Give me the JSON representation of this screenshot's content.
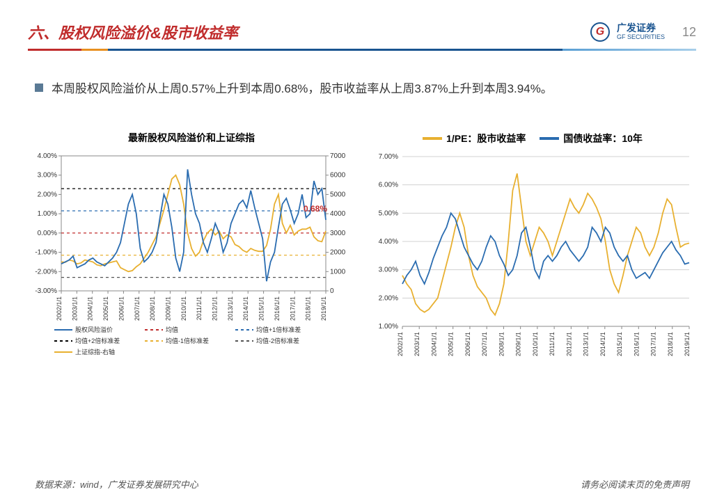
{
  "header": {
    "title": "六、股权风险溢价&股市收益率",
    "logo_cn": "广发证券",
    "logo_en": "GF SECURITIES",
    "page_number": "12"
  },
  "body_text": "本周股权风险溢价从上周0.57%上升到本周0.68%，股市收益率从上周3.87%上升到本周3.94%。",
  "chart1": {
    "title": "最新股权风险溢价和上证综指",
    "annotation": "0.68%",
    "annotation_color": "#c02c2c",
    "ylim_left": [
      -3,
      4
    ],
    "ylim_right": [
      0,
      7000
    ],
    "yticks_left": [
      "-3.00%",
      "-2.00%",
      "-1.00%",
      "0.00%",
      "1.00%",
      "2.00%",
      "3.00%",
      "4.00%"
    ],
    "yticks_right": [
      "0",
      "1000",
      "2000",
      "3000",
      "4000",
      "5000",
      "6000",
      "7000"
    ],
    "xticks": [
      "2002/1/1",
      "2003/1/1",
      "2004/1/1",
      "2005/1/1",
      "2006/1/1",
      "2007/1/1",
      "2008/1/1",
      "2009/1/1",
      "2010/1/1",
      "2011/1/1",
      "2012/1/1",
      "2013/1/1",
      "2014/1/1",
      "2015/1/1",
      "2016/1/1",
      "2017/1/1",
      "2018/1/1",
      "2019/1/1"
    ],
    "series_erp": {
      "color": "#2a6cb0",
      "width": 1.8,
      "points": [
        -1.6,
        -1.5,
        -1.4,
        -1.2,
        -1.8,
        -1.7,
        -1.6,
        -1.4,
        -1.3,
        -1.5,
        -1.6,
        -1.7,
        -1.5,
        -1.3,
        -1.0,
        -0.5,
        0.5,
        1.5,
        2.0,
        1.0,
        -0.8,
        -1.5,
        -1.3,
        -1.0,
        -0.5,
        0.8,
        2.0,
        1.5,
        0.3,
        -1.3,
        -2.0,
        -1.0,
        3.3,
        2.0,
        1.0,
        0.5,
        -0.5,
        -1.0,
        -0.3,
        0.5,
        0.0,
        -1.0,
        -0.5,
        0.5,
        1.0,
        1.5,
        1.7,
        1.3,
        2.2,
        1.3,
        0.5,
        -0.3,
        -2.5,
        -1.5,
        -1.0,
        0.3,
        1.5,
        1.8,
        1.2,
        0.5,
        1.0,
        2.0,
        0.8,
        1.0,
        2.7,
        2.0,
        2.3,
        0.68
      ]
    },
    "series_index": {
      "color": "#e8b030",
      "width": 1.8,
      "points": [
        1500,
        1480,
        1600,
        1550,
        1400,
        1450,
        1600,
        1550,
        1500,
        1350,
        1300,
        1400,
        1450,
        1500,
        1550,
        1200,
        1100,
        1000,
        1050,
        1250,
        1400,
        1700,
        2000,
        2400,
        2800,
        3500,
        4200,
        5000,
        5800,
        6000,
        5500,
        4500,
        3000,
        2200,
        1800,
        2000,
        2600,
        3000,
        3200,
        2900,
        3100,
        2700,
        2900,
        2800,
        2400,
        2300,
        2100,
        2000,
        2200,
        2100,
        2050,
        2050,
        2350,
        3200,
        4500,
        5000,
        3500,
        3000,
        3400,
        2900,
        3100,
        3200,
        3200,
        3300,
        2800,
        2600,
        2550,
        3100
      ]
    },
    "hlines": [
      {
        "y": 0,
        "color": "#c02c2c",
        "dash": "4,4"
      },
      {
        "y": 1.15,
        "color": "#2a6cb0",
        "dash": "4,4"
      },
      {
        "y": 2.3,
        "color": "#000000",
        "dash": "4,4"
      },
      {
        "y": -1.15,
        "color": "#e8b030",
        "dash": "4,4"
      },
      {
        "y": -2.3,
        "color": "#555555",
        "dash": "4,4"
      }
    ],
    "legend": [
      {
        "label": "股权风险溢价",
        "color": "#2a6cb0",
        "dash": "0"
      },
      {
        "label": "均值",
        "color": "#c02c2c",
        "dash": "4,4"
      },
      {
        "label": "均值+1倍标准差",
        "color": "#2a6cb0",
        "dash": "4,4"
      },
      {
        "label": "均值+2倍标准差",
        "color": "#000000",
        "dash": "4,4"
      },
      {
        "label": "均值-1倍标准差",
        "color": "#e8b030",
        "dash": "4,4"
      },
      {
        "label": "均值-2倍标准差",
        "color": "#555555",
        "dash": "4,4"
      },
      {
        "label": "上证综指-右轴",
        "color": "#e8b030",
        "dash": "0"
      }
    ],
    "background_color": "#ffffff",
    "grid_color": "#d0d0d0",
    "label_fontsize": 10
  },
  "chart2": {
    "title_seg1": "1/PE：股市收益率",
    "title_seg2": "国债收益率：10年",
    "seg1_color": "#e8b030",
    "seg2_color": "#2a6cb0",
    "ylim": [
      1,
      7
    ],
    "yticks": [
      "1.00%",
      "2.00%",
      "3.00%",
      "4.00%",
      "5.00%",
      "6.00%",
      "7.00%"
    ],
    "xticks": [
      "2002/1/1",
      "2003/1/1",
      "2004/1/1",
      "2005/1/1",
      "2006/1/1",
      "2007/1/1",
      "2008/1/1",
      "2009/1/1",
      "2010/1/1",
      "2011/1/1",
      "2012/1/1",
      "2013/1/1",
      "2014/1/1",
      "2015/1/1",
      "2016/1/1",
      "2017/1/1",
      "2018/1/1",
      "2019/1/1"
    ],
    "series_pe": {
      "color": "#e8b030",
      "width": 1.8,
      "points": [
        2.8,
        2.5,
        2.3,
        1.8,
        1.6,
        1.5,
        1.6,
        1.8,
        2.0,
        2.6,
        3.2,
        3.8,
        4.5,
        5.0,
        4.5,
        3.5,
        2.8,
        2.4,
        2.2,
        2.0,
        1.6,
        1.4,
        1.8,
        2.5,
        4.0,
        5.8,
        6.4,
        5.2,
        4.0,
        3.5,
        4.0,
        4.5,
        4.3,
        4.0,
        3.5,
        4.0,
        4.5,
        5.0,
        5.5,
        5.2,
        5.0,
        5.3,
        5.7,
        5.5,
        5.2,
        4.8,
        4.0,
        3.0,
        2.5,
        2.2,
        2.8,
        3.5,
        4.0,
        4.5,
        4.3,
        3.8,
        3.5,
        3.8,
        4.3,
        5.0,
        5.5,
        5.3,
        4.5,
        3.8,
        3.9,
        3.94
      ]
    },
    "series_bond": {
      "color": "#2a6cb0",
      "width": 1.8,
      "points": [
        2.5,
        2.8,
        3.0,
        3.3,
        2.8,
        2.5,
        2.9,
        3.4,
        3.8,
        4.2,
        4.5,
        5.0,
        4.8,
        4.3,
        3.8,
        3.5,
        3.2,
        3.0,
        3.3,
        3.8,
        4.2,
        4.0,
        3.5,
        3.2,
        2.8,
        3.0,
        3.5,
        4.3,
        4.5,
        3.8,
        3.0,
        2.7,
        3.3,
        3.5,
        3.3,
        3.5,
        3.8,
        4.0,
        3.7,
        3.5,
        3.3,
        3.5,
        3.8,
        4.5,
        4.3,
        4.0,
        4.5,
        4.3,
        3.8,
        3.5,
        3.3,
        3.5,
        3.0,
        2.7,
        2.8,
        2.9,
        2.7,
        3.0,
        3.3,
        3.6,
        3.8,
        4.0,
        3.7,
        3.5,
        3.2,
        3.25
      ]
    },
    "background_color": "#ffffff",
    "grid_color": "#d0d0d0",
    "label_fontsize": 10
  },
  "footer": {
    "left": "数据来源：wind，广发证券发展研究中心",
    "right": "请务必阅读末页的免责声明"
  }
}
